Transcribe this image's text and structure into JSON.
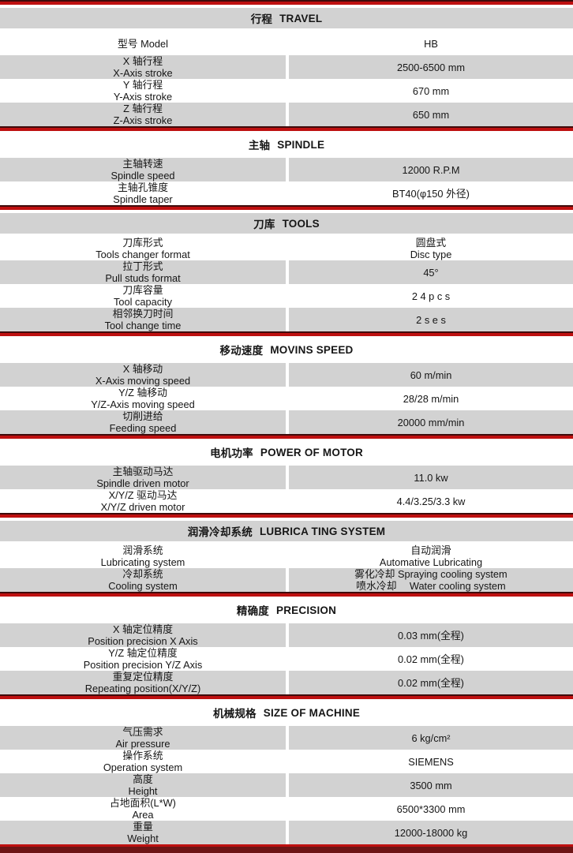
{
  "colors": {
    "row_gray": "#d2d2d2",
    "divider_red": "#be1010",
    "divider_dark_red": "#3f0b0b",
    "bottom_bar_red": "#6d1515",
    "text": "#161616"
  },
  "table": {
    "sections": [
      {
        "title_zh": "行程",
        "title_en": "TRAVEL",
        "rows": [
          {
            "zh": "型号 Model",
            "v1": "HB"
          },
          {
            "zh": "X 轴行程",
            "en": "X-Axis stroke",
            "v1": "2500-6500 mm"
          },
          {
            "zh": "Y 轴行程",
            "en": "Y-Axis stroke",
            "v1": "670 mm"
          },
          {
            "zh": "Z 轴行程",
            "en": "Z-Axis stroke",
            "v1": "650 mm"
          }
        ]
      },
      {
        "title_zh": "主轴",
        "title_en": "SPINDLE",
        "rows": [
          {
            "zh": "主轴转速",
            "en": "Spindle speed",
            "v1": "12000 R.P.M"
          },
          {
            "zh": "主轴孔锥度",
            "en": "Spindle taper",
            "v1": "BT40(φ150 外径)"
          }
        ]
      },
      {
        "title_zh": "刀库",
        "title_en": "TOOLS",
        "rows": [
          {
            "zh": "刀库形式",
            "en": "Tools changer format",
            "v1": "圆盘式",
            "v2": "Disc type"
          },
          {
            "zh": "拉丁形式",
            "en": "Pull studs format",
            "v1": "45°"
          },
          {
            "zh": "刀库容量",
            "en": "Tool capacity",
            "v1": "2 4 p c s"
          },
          {
            "zh": "相邻换刀时间",
            "en": "Tool change time",
            "v1": "2 s e s"
          }
        ]
      },
      {
        "title_zh": "移动速度",
        "title_en": "MOVINS SPEED",
        "rows": [
          {
            "zh": "X 轴移动",
            "en": "X-Axis moving speed",
            "v1": "60 m/min"
          },
          {
            "zh": "Y/Z 轴移动",
            "en": "Y/Z-Axis moving speed",
            "v1": "28/28 m/min"
          },
          {
            "zh": "切削进给",
            "en": "Feeding speed",
            "v1": "20000 mm/min"
          }
        ]
      },
      {
        "title_zh": "电机功率",
        "title_en": "POWER OF MOTOR",
        "rows": [
          {
            "zh": "主轴驱动马达",
            "en": "Spindle driven motor",
            "v1": "11.0 kw"
          },
          {
            "zh": "X/Y/Z 驱动马达",
            "en": "X/Y/Z driven motor",
            "v1": "4.4/3.25/3.3 kw"
          }
        ]
      },
      {
        "title_zh": "润滑冷却系统",
        "title_en": "LUBRICA TING SYSTEM",
        "rows": [
          {
            "zh": "润滑系统",
            "en": "Lubricating system",
            "v1": "自动润滑",
            "v2": "Automative Lubricating"
          },
          {
            "zh": "冷却系统",
            "en": "Cooling system",
            "v1": "雾化冷却 Spraying cooling system",
            "v2": "喷水冷却　 Water cooling system"
          }
        ]
      },
      {
        "title_zh": "精确度",
        "title_en": "PRECISION",
        "rows": [
          {
            "zh": "X 轴定位精度",
            "en": "Position precision X Axis",
            "v1": "0.03 mm(全程)"
          },
          {
            "zh": "Y/Z 轴定位精度",
            "en": "Position precision Y/Z Axis",
            "v1": "0.02 mm(全程)"
          },
          {
            "zh": "重复定位精度",
            "en": "Repeating position(X/Y/Z)",
            "v1": "0.02 mm(全程)"
          }
        ]
      },
      {
        "title_zh": "机械规格",
        "title_en": "SIZE OF MACHINE",
        "rows": [
          {
            "zh": "气压需求",
            "en": "Air pressure",
            "v1": "6 kg/cm²"
          },
          {
            "zh": "操作系统",
            "en": "Operation system",
            "v1": "SIEMENS"
          },
          {
            "zh": "高度",
            "en": "Height",
            "v1": "3500 mm"
          },
          {
            "zh": "占地面积(L*W)",
            "en": "Area",
            "v1": "6500*3300 mm"
          },
          {
            "zh": "重量",
            "en": "Weight",
            "v1": "12000-18000 kg"
          }
        ]
      }
    ]
  }
}
